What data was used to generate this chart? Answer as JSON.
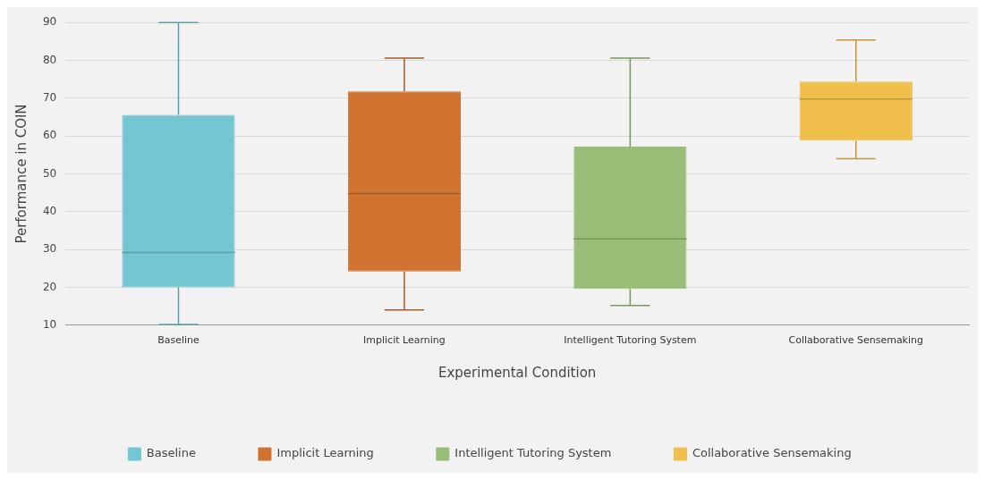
{
  "chart_data": {
    "type": "box",
    "xlabel": "Experimental Condition",
    "ylabel": "Performance in COIN",
    "categories": [
      "Baseline",
      "Implicit Learning",
      "Intelligent Tutoring System",
      "Collaborative Sensemaking"
    ],
    "series": [
      {
        "name": "Baseline",
        "color": "#73c7d0",
        "boxes": [
          {
            "low": 10.2,
            "q1": 20,
            "median": 29.2,
            "q3": 65.6,
            "high": 90
          },
          null,
          null,
          null
        ]
      },
      {
        "name": "Implicit Learning",
        "color": "#d17330",
        "boxes": [
          null,
          {
            "low": 14,
            "q1": 24.2,
            "median": 44.8,
            "q3": 71.8,
            "high": 80.6
          },
          null,
          null
        ]
      },
      {
        "name": "Intelligent Tutoring System",
        "color": "#98bd76",
        "boxes": [
          null,
          null,
          {
            "low": 15.2,
            "q1": 19.6,
            "median": 32.8,
            "q3": 57.2,
            "high": 80.6
          },
          null
        ]
      },
      {
        "name": "Collaborative Sensemaking",
        "color": "#f0be4a",
        "boxes": [
          null,
          null,
          null,
          {
            "low": 54,
            "q1": 58.8,
            "median": 69.8,
            "q3": 74.4,
            "high": 85.4
          }
        ]
      }
    ],
    "ylim": [
      10,
      90
    ],
    "yticks": [
      10,
      20,
      30,
      40,
      50,
      60,
      70,
      80,
      90
    ],
    "grid": "y",
    "legend": "bottom"
  }
}
